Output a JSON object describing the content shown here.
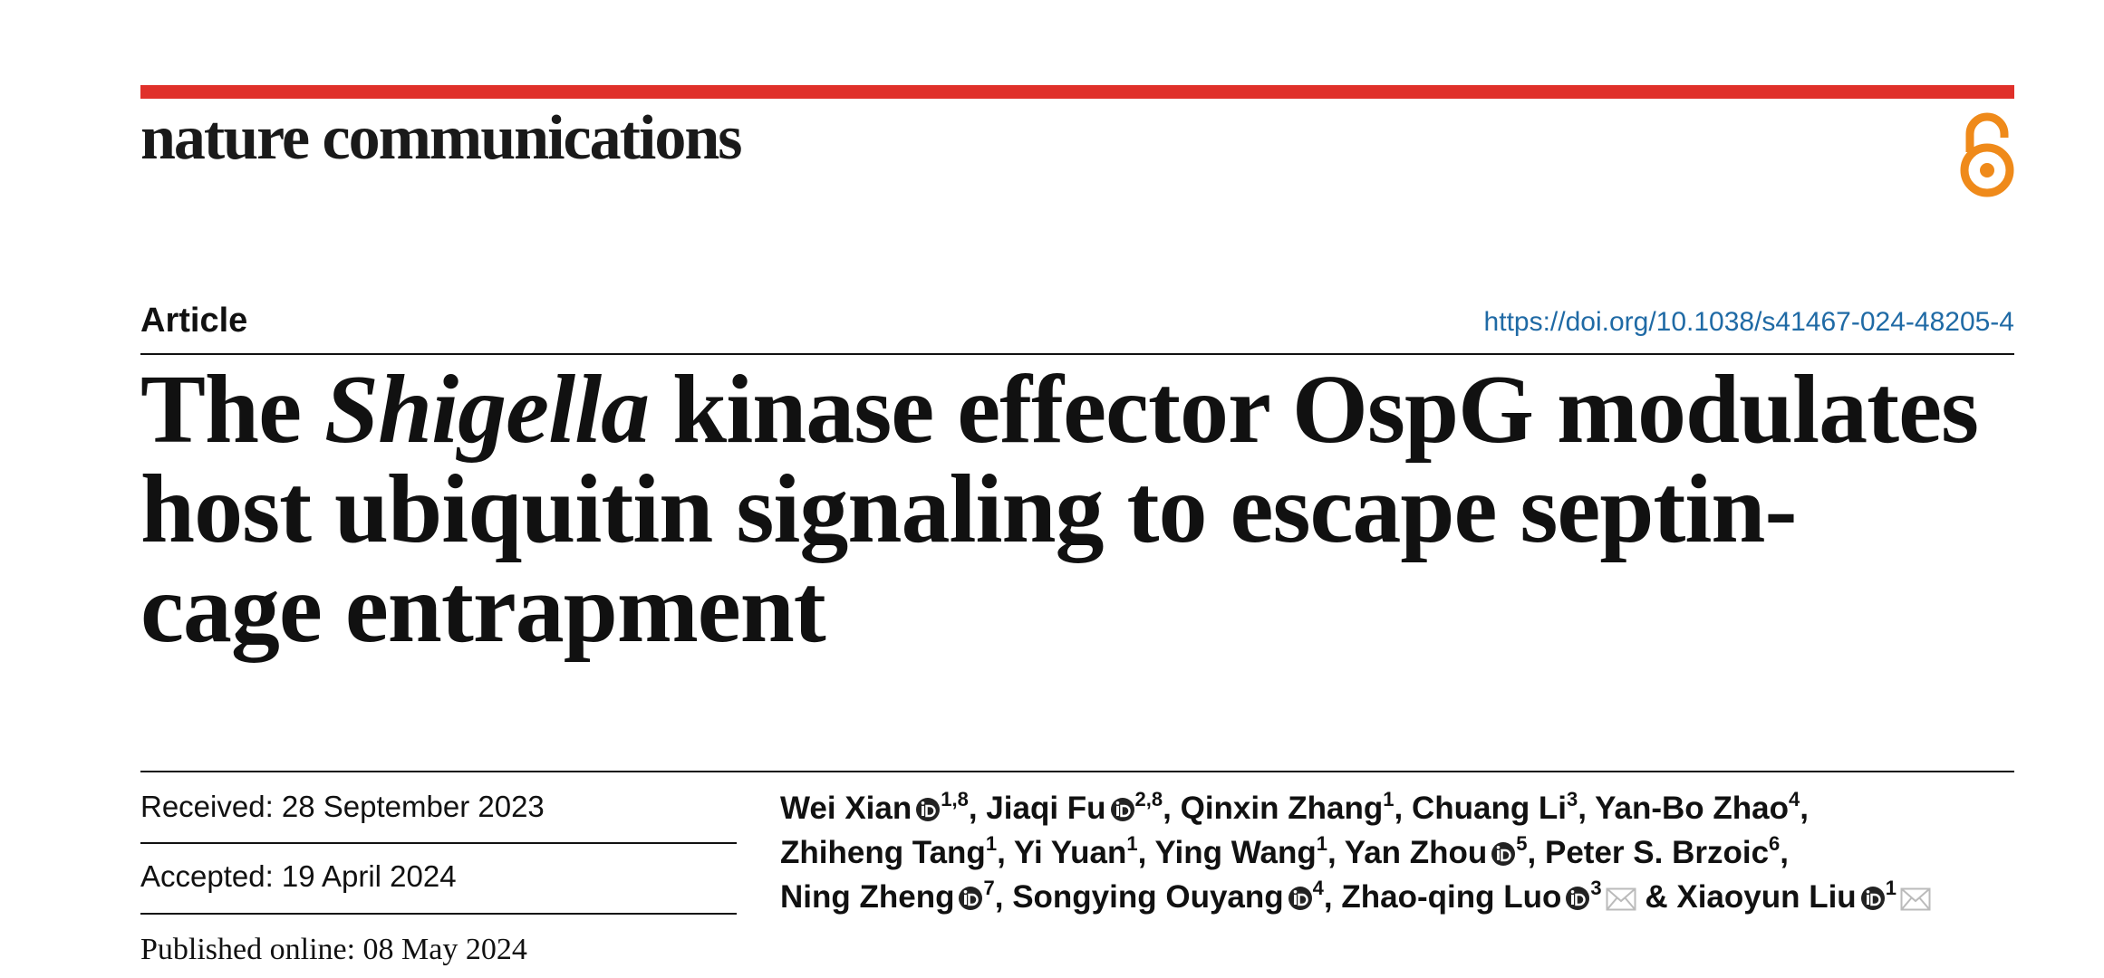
{
  "header": {
    "journal": "nature communications"
  },
  "article": {
    "type": "Article",
    "doi": "https://doi.org/10.1038/s41467-024-48205-4",
    "title_lines": [
      [
        {
          "text": "The "
        },
        {
          "text": "Shigella",
          "italic": true
        },
        {
          "text": " kinase effector OspG modulates"
        }
      ],
      [
        {
          "text": "host ubiquitin signaling to escape septin-"
        }
      ],
      [
        {
          "text": "cage entrapment"
        }
      ]
    ]
  },
  "dates": {
    "received": "Received: 28 September 2023",
    "accepted": "Accepted: 19 April 2024",
    "published": "Published online: 08 May 2024"
  },
  "authors": [
    [
      {
        "name": "Wei Xian",
        "orcid": true,
        "affil": "1,8",
        "sep": ","
      },
      {
        "name": "Jiaqi Fu",
        "orcid": true,
        "affil": "2,8",
        "sep": ","
      },
      {
        "name": "Qinxin Zhang",
        "affil": "1",
        "sep": ","
      },
      {
        "name": "Chuang Li",
        "affil": "3",
        "sep": ","
      },
      {
        "name": "Yan-Bo Zhao",
        "affil": "4",
        "sep": ","
      }
    ],
    [
      {
        "name": "Zhiheng Tang",
        "affil": "1",
        "sep": ","
      },
      {
        "name": "Yi Yuan",
        "affil": "1",
        "sep": ","
      },
      {
        "name": "Ying Wang",
        "affil": "1",
        "sep": ","
      },
      {
        "name": "Yan Zhou",
        "orcid": true,
        "affil": "5",
        "sep": ","
      },
      {
        "name": "Peter S. Brzoic",
        "affil": "6",
        "sep": ","
      }
    ],
    [
      {
        "name": "Ning Zheng",
        "orcid": true,
        "affil": "7",
        "sep": ","
      },
      {
        "name": "Songying Ouyang",
        "orcid": true,
        "affil": "4",
        "sep": ","
      },
      {
        "name": "Zhao-qing Luo",
        "orcid": true,
        "affil": "3",
        "mail": true
      },
      {
        "lead": "&",
        "name": "Xiaoyun Liu",
        "orcid": true,
        "affil": "1",
        "mail": true
      }
    ]
  ]
}
